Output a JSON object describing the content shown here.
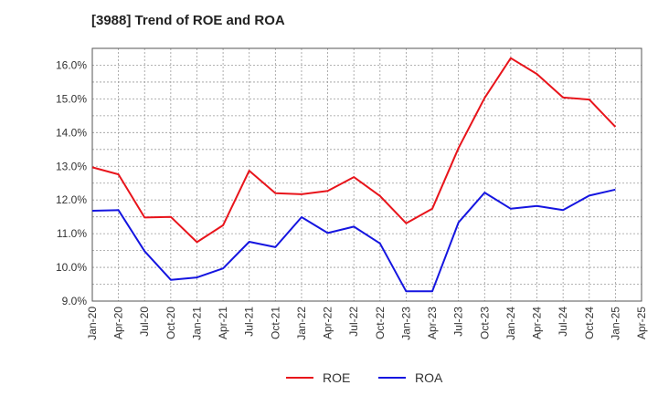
{
  "chart_data": {
    "type": "line",
    "title": "[3988]  Trend of ROE and ROA",
    "xlabel": "",
    "ylabel": "",
    "x": [
      "Jan-20",
      "Apr-20",
      "Jul-20",
      "Oct-20",
      "Jan-21",
      "Apr-21",
      "Jul-21",
      "Oct-21",
      "Jan-22",
      "Apr-22",
      "Jul-22",
      "Oct-22",
      "Jan-23",
      "Apr-23",
      "Jul-23",
      "Oct-23",
      "Jan-24",
      "Apr-24",
      "Jul-24",
      "Oct-24",
      "Jan-25",
      "Apr-25"
    ],
    "ylim": [
      9.0,
      16.5
    ],
    "yticks": [
      9.0,
      10.0,
      11.0,
      12.0,
      13.0,
      14.0,
      15.0,
      16.0
    ],
    "ytick_labels": [
      "9.0%",
      "10.0%",
      "11.0%",
      "12.0%",
      "13.0%",
      "14.0%",
      "15.0%",
      "16.0%"
    ],
    "grid": true,
    "legend_position": "bottom-center",
    "series": [
      {
        "name": "ROE",
        "color": "#e8141b",
        "values": [
          12.97,
          12.76,
          11.48,
          11.5,
          10.75,
          11.25,
          12.87,
          12.2,
          12.17,
          12.27,
          12.68,
          12.12,
          11.31,
          11.74,
          13.54,
          15.03,
          16.21,
          15.74,
          15.04,
          14.98,
          14.17,
          null
        ]
      },
      {
        "name": "ROA",
        "color": "#1515e0",
        "values": [
          11.68,
          11.7,
          10.48,
          9.63,
          9.7,
          9.97,
          10.76,
          10.6,
          11.49,
          11.02,
          11.21,
          10.71,
          9.29,
          9.29,
          11.33,
          12.22,
          11.74,
          11.82,
          11.7,
          12.13,
          12.31,
          null
        ]
      }
    ]
  }
}
